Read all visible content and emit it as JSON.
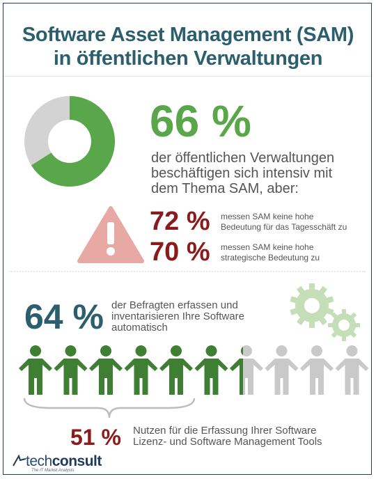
{
  "title": {
    "line1": "Software Asset Management (SAM)",
    "line2": "in öffentlichen Verwaltungen"
  },
  "stat_main": {
    "value": "66 %",
    "fraction": 0.66,
    "line1": "der öffentlichen Verwaltungen",
    "line2": "beschäftigen sich intensiv mit",
    "line3": "dem Thema SAM, aber:"
  },
  "stat_72": {
    "value": "72 %",
    "line1": "messen SAM keine hohe",
    "line2": "Bedeutung für das Tagesschäft zu"
  },
  "stat_70": {
    "value": "70 %",
    "line1": "messen SAM keine hohe",
    "line2": "strategische Bedeutung zu"
  },
  "stat_64": {
    "value": "64 %",
    "fraction": 0.64,
    "line1": "der Befragten erfassen und",
    "line2": "inventarisieren Ihre Software",
    "line3": "automatisch"
  },
  "stat_51": {
    "value": "51 %",
    "line1": "Nutzen für die Erfassung Ihrer Software",
    "line2": "Lizenz- und Software Management Tools"
  },
  "people_total": 10,
  "logo": {
    "brand_a": "tech",
    "brand_b": "consult",
    "tagline": "The IT Market Analysts"
  },
  "colors": {
    "green": "#5aa64a",
    "dark_green": "#3f7f34",
    "grey": "#c9c9c9",
    "red": "#8b1a1a",
    "teal": "#2b5f6e",
    "warning": "#e8a9a5"
  }
}
